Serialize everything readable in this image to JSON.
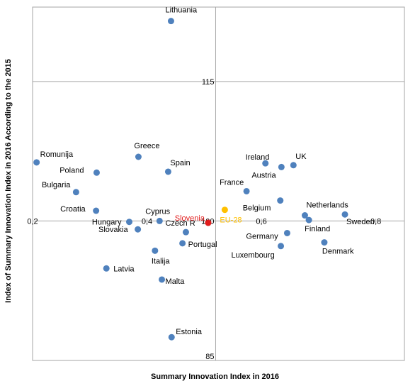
{
  "chart_data": {
    "type": "scatter",
    "xlabel": "Summary Innovation Index in 2016",
    "ylabel": "Index of Summary Innovation Index in 2016 According to the 2015",
    "xlim": [
      0.2,
      0.85
    ],
    "ylim": [
      85,
      123
    ],
    "grid": true,
    "x_crossing": 0.52,
    "y_crossing": 100,
    "x_ticks": [
      {
        "value": 0.2,
        "label": "0,2"
      },
      {
        "value": 0.4,
        "label": "0,4"
      },
      {
        "value": 0.6,
        "label": "0,6"
      },
      {
        "value": 0.8,
        "label": "0,8"
      }
    ],
    "y_ticks": [
      {
        "value": 85,
        "label": "85"
      },
      {
        "value": 100,
        "label": "100"
      },
      {
        "value": 115,
        "label": "115"
      }
    ],
    "colors": {
      "default": "#4f81bd",
      "highlight": "#e11b1b",
      "reference": "#ffc000",
      "grid": "#a6a6a6",
      "frame": "#a6a6a6"
    },
    "points": [
      {
        "name": "Lithuania",
        "x": 0.442,
        "y": 121.5,
        "highlight": "default"
      },
      {
        "name": "Greece",
        "x": 0.385,
        "y": 106.9,
        "highlight": "default"
      },
      {
        "name": "Romunija",
        "x": 0.207,
        "y": 106.3,
        "highlight": "default"
      },
      {
        "name": "Poland",
        "x": 0.312,
        "y": 105.2,
        "highlight": "default"
      },
      {
        "name": "Spain",
        "x": 0.437,
        "y": 105.3,
        "highlight": "default"
      },
      {
        "name": "Bulgaria",
        "x": 0.276,
        "y": 103.1,
        "highlight": "default"
      },
      {
        "name": "Croatia",
        "x": 0.311,
        "y": 101.1,
        "highlight": "default"
      },
      {
        "name": "Cyprus",
        "x": 0.422,
        "y": 100.0,
        "highlight": "default"
      },
      {
        "name": "Hungary",
        "x": 0.369,
        "y": 99.9,
        "highlight": "default"
      },
      {
        "name": "Slovakia",
        "x": 0.384,
        "y": 99.1,
        "highlight": "default"
      },
      {
        "name": "Czech R",
        "x": 0.468,
        "y": 98.8,
        "highlight": "default"
      },
      {
        "name": "Portugal",
        "x": 0.462,
        "y": 97.6,
        "highlight": "default"
      },
      {
        "name": "Italija",
        "x": 0.414,
        "y": 96.8,
        "highlight": "default"
      },
      {
        "name": "Latvia",
        "x": 0.329,
        "y": 94.9,
        "highlight": "default"
      },
      {
        "name": "Malta",
        "x": 0.426,
        "y": 93.7,
        "highlight": "default"
      },
      {
        "name": "Estonia",
        "x": 0.443,
        "y": 87.5,
        "highlight": "default"
      },
      {
        "name": "Slovenia",
        "x": 0.507,
        "y": 99.8,
        "highlight": "highlight"
      },
      {
        "name": "EU-28",
        "x": 0.536,
        "y": 101.2,
        "highlight": "reference"
      },
      {
        "name": "Ireland",
        "x": 0.607,
        "y": 106.2,
        "highlight": "default"
      },
      {
        "name": "Austria",
        "x": 0.635,
        "y": 105.8,
        "highlight": "default"
      },
      {
        "name": "UK",
        "x": 0.656,
        "y": 106.0,
        "highlight": "default"
      },
      {
        "name": "France",
        "x": 0.574,
        "y": 103.2,
        "highlight": "default"
      },
      {
        "name": "Belgium",
        "x": 0.633,
        "y": 102.2,
        "highlight": "default"
      },
      {
        "name": "Netherlands",
        "x": 0.676,
        "y": 100.6,
        "highlight": "default"
      },
      {
        "name": "Finland",
        "x": 0.683,
        "y": 100.1,
        "highlight": "default"
      },
      {
        "name": "Sweden",
        "x": 0.746,
        "y": 100.7,
        "highlight": "default"
      },
      {
        "name": "Germany",
        "x": 0.645,
        "y": 98.7,
        "highlight": "default"
      },
      {
        "name": "Luxembourg",
        "x": 0.634,
        "y": 97.3,
        "highlight": "default"
      },
      {
        "name": "Denmark",
        "x": 0.71,
        "y": 97.7,
        "highlight": "default"
      }
    ]
  }
}
